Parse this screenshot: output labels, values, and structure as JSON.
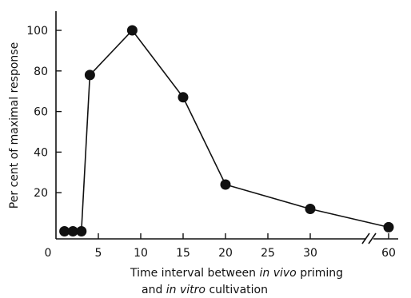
{
  "chart_data": {
    "type": "line",
    "title": "",
    "xlabel_parts": [
      {
        "text": "Time interval between ",
        "italic": false
      },
      {
        "text": "in vivo",
        "italic": true
      },
      {
        "text": " priming",
        "italic": false
      }
    ],
    "xlabel_line2_parts": [
      {
        "text": "and ",
        "italic": false
      },
      {
        "text": "in vitro",
        "italic": true
      },
      {
        "text": " cultivation",
        "italic": false
      }
    ],
    "ylabel": "Per cent of maximal response",
    "xticks": [
      "0",
      "5",
      "10",
      "15",
      "20",
      "25",
      "30",
      "60"
    ],
    "yticks": [
      "20",
      "40",
      "60",
      "80",
      "100"
    ],
    "ylim": [
      0,
      110
    ],
    "x_axis_break": "between 30 and 60",
    "grid": false,
    "series": [
      {
        "x": [
          1,
          2,
          3,
          4,
          9,
          15,
          20,
          30,
          60
        ],
        "values": [
          1,
          1,
          1,
          78,
          100,
          67,
          24,
          12,
          3
        ]
      }
    ]
  }
}
